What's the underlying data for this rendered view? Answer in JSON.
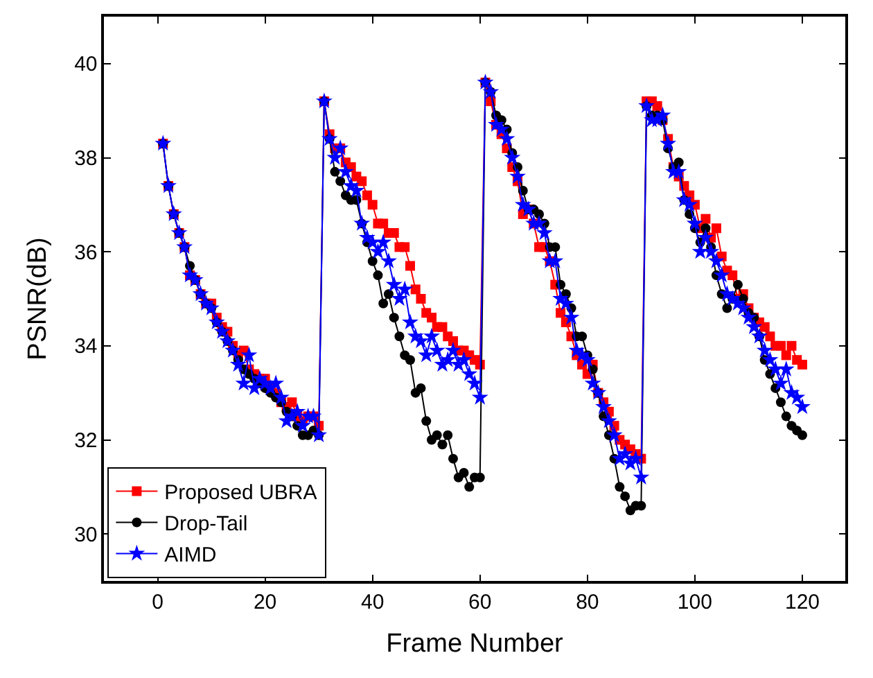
{
  "chart_data": {
    "type": "line",
    "xlabel": "Frame Number",
    "ylabel": "PSNR(dB)",
    "x": [
      1,
      2,
      3,
      4,
      5,
      6,
      7,
      8,
      9,
      10,
      11,
      12,
      13,
      14,
      15,
      16,
      17,
      18,
      19,
      20,
      21,
      22,
      23,
      24,
      25,
      26,
      27,
      28,
      29,
      30,
      31,
      32,
      33,
      34,
      35,
      36,
      37,
      38,
      39,
      40,
      41,
      42,
      43,
      44,
      45,
      46,
      47,
      48,
      49,
      50,
      51,
      52,
      53,
      54,
      55,
      56,
      57,
      58,
      59,
      60,
      61,
      62,
      63,
      64,
      65,
      66,
      67,
      68,
      69,
      70,
      71,
      72,
      73,
      74,
      75,
      76,
      77,
      78,
      79,
      80,
      81,
      82,
      83,
      84,
      85,
      86,
      87,
      88,
      89,
      90,
      91,
      92,
      93,
      94,
      95,
      96,
      97,
      98,
      99,
      100,
      101,
      102,
      103,
      104,
      105,
      106,
      107,
      108,
      109,
      110,
      111,
      112,
      113,
      114,
      115,
      116,
      117,
      118,
      119,
      120
    ],
    "series": [
      {
        "name": "Proposed UBRA",
        "color": "#ff0000",
        "marker": "square",
        "values": [
          38.3,
          37.4,
          36.8,
          36.4,
          36.1,
          35.5,
          35.4,
          35.1,
          34.9,
          34.9,
          34.6,
          34.4,
          34.3,
          34.0,
          33.8,
          33.9,
          33.5,
          33.4,
          33.3,
          33.3,
          33.1,
          33.0,
          32.8,
          32.7,
          32.8,
          32.5,
          32.4,
          32.5,
          32.5,
          32.3,
          39.2,
          38.5,
          38.2,
          38.2,
          37.9,
          37.8,
          37.6,
          37.5,
          37.2,
          37.0,
          36.6,
          36.6,
          36.4,
          36.4,
          36.1,
          36.1,
          35.7,
          35.2,
          35.0,
          34.7,
          34.6,
          34.4,
          34.4,
          34.2,
          34.1,
          33.9,
          33.9,
          33.8,
          33.7,
          33.6,
          39.6,
          39.2,
          38.7,
          38.5,
          38.2,
          37.8,
          37.5,
          36.8,
          36.9,
          36.6,
          36.1,
          36.1,
          35.8,
          35.3,
          34.7,
          34.5,
          34.2,
          33.8,
          33.6,
          33.4,
          33.6,
          33.0,
          32.8,
          32.6,
          32.3,
          32.0,
          31.9,
          31.8,
          31.7,
          31.6,
          39.2,
          39.2,
          39.1,
          38.8,
          38.4,
          37.8,
          37.6,
          37.4,
          37.2,
          37.0,
          36.5,
          36.7,
          36.3,
          36.5,
          35.9,
          35.6,
          35.5,
          35.0,
          35.1,
          34.8,
          34.6,
          34.5,
          34.4,
          34.2,
          34.0,
          34.0,
          33.8,
          34.0,
          33.7,
          33.6
        ]
      },
      {
        "name": "Drop-Tail",
        "color": "#000000",
        "marker": "circle",
        "values": [
          38.3,
          37.4,
          36.8,
          36.4,
          36.1,
          35.7,
          35.4,
          35.1,
          34.9,
          34.8,
          34.5,
          34.3,
          34.1,
          33.9,
          33.7,
          33.5,
          33.4,
          33.3,
          33.2,
          33.1,
          33.0,
          32.9,
          32.8,
          32.6,
          32.5,
          32.3,
          32.1,
          32.1,
          32.2,
          32.1,
          39.2,
          38.4,
          37.7,
          37.5,
          37.2,
          37.1,
          37.1,
          36.6,
          36.2,
          35.8,
          35.5,
          34.9,
          35.1,
          34.6,
          34.2,
          33.8,
          33.7,
          33.0,
          33.1,
          32.4,
          32.0,
          32.1,
          31.9,
          32.1,
          31.6,
          31.2,
          31.3,
          31.0,
          31.2,
          31.2,
          39.6,
          39.4,
          38.9,
          38.8,
          38.6,
          38.1,
          37.8,
          37.3,
          36.9,
          36.9,
          36.8,
          36.6,
          36.1,
          36.1,
          35.3,
          35.1,
          34.8,
          34.2,
          34.2,
          33.8,
          33.5,
          33.0,
          32.5,
          32.1,
          31.6,
          31.0,
          30.8,
          30.5,
          30.6,
          30.6,
          39.1,
          38.9,
          38.9,
          38.8,
          38.2,
          37.8,
          37.9,
          37.1,
          36.8,
          36.5,
          36.2,
          36.5,
          36.1,
          35.5,
          35.1,
          34.8,
          35.0,
          35.3,
          35.0,
          34.7,
          34.6,
          34.2,
          33.7,
          33.4,
          33.1,
          32.8,
          32.5,
          32.3,
          32.2,
          32.1
        ]
      },
      {
        "name": "AIMD",
        "color": "#0000ff",
        "marker": "star",
        "values": [
          38.3,
          37.4,
          36.8,
          36.4,
          36.1,
          35.5,
          35.4,
          35.1,
          34.9,
          34.8,
          34.5,
          34.3,
          34.1,
          33.9,
          33.6,
          33.2,
          33.8,
          33.1,
          33.3,
          33.2,
          33.1,
          33.2,
          32.9,
          32.4,
          32.5,
          32.6,
          32.3,
          32.5,
          32.5,
          32.1,
          39.2,
          38.4,
          38.0,
          38.2,
          37.7,
          37.4,
          37.3,
          36.6,
          36.3,
          36.2,
          36.0,
          36.2,
          35.8,
          35.3,
          35.0,
          35.2,
          34.5,
          34.2,
          34.1,
          33.8,
          34.2,
          33.9,
          33.6,
          33.7,
          33.9,
          33.6,
          33.7,
          33.4,
          33.2,
          32.9,
          39.6,
          39.4,
          38.7,
          38.6,
          38.4,
          38.0,
          37.6,
          37.0,
          36.9,
          36.6,
          36.6,
          36.4,
          35.8,
          35.8,
          35.0,
          34.9,
          34.6,
          33.9,
          33.8,
          33.7,
          33.2,
          33.0,
          32.7,
          32.4,
          32.1,
          31.6,
          31.7,
          31.5,
          31.6,
          31.2,
          39.1,
          38.8,
          38.8,
          38.9,
          38.3,
          37.7,
          37.7,
          37.1,
          37.0,
          36.6,
          36.0,
          36.3,
          36.0,
          35.8,
          35.5,
          35.1,
          35.0,
          34.9,
          34.8,
          34.6,
          34.4,
          34.2,
          33.9,
          33.7,
          33.5,
          33.2,
          33.5,
          33.0,
          32.9,
          32.7
        ]
      }
    ],
    "xlim": [
      -10,
      128
    ],
    "ylim": [
      29,
      41
    ],
    "xticks": [
      0,
      20,
      40,
      60,
      80,
      100,
      120
    ],
    "yticks": [
      30,
      32,
      34,
      36,
      38,
      40
    ],
    "legend": "bottom left",
    "line_style": "solid"
  }
}
